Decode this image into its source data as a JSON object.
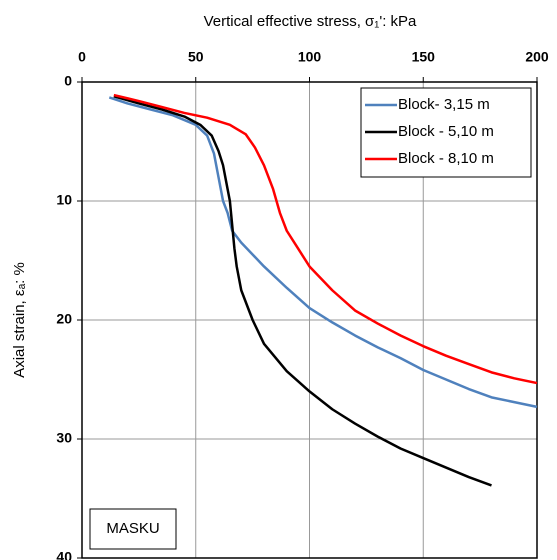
{
  "chart_data": {
    "type": "line",
    "title": "Vertical effective stress, σ₁':  kPa",
    "y_label": "Axial strain, εₐ: %",
    "annotation": "MASKU",
    "xlim": [
      0,
      200
    ],
    "xticks": [
      0,
      50,
      100,
      150,
      200
    ],
    "ylim": [
      0,
      40
    ],
    "yticks": [
      0,
      10,
      20,
      30,
      40
    ],
    "y_inverted": true,
    "x_axis_position": "top",
    "grid": true,
    "legend": "top-right",
    "series": [
      {
        "name": "Block- 3,15 m",
        "color": "#4f81bd",
        "x": [
          12,
          20,
          30,
          40,
          50,
          55,
          58,
          60,
          62,
          64,
          66,
          70,
          80,
          90,
          100,
          110,
          120,
          130,
          140,
          150,
          160,
          170,
          180,
          190,
          200
        ],
        "values": [
          1.3,
          1.8,
          2.3,
          2.8,
          3.6,
          4.5,
          6,
          8,
          10,
          11,
          12.5,
          13.5,
          15.5,
          17.3,
          19,
          20.2,
          21.3,
          22.3,
          23.2,
          24.2,
          25,
          25.8,
          26.5,
          26.9,
          27.3
        ]
      },
      {
        "name": "Block - 5,10 m",
        "color": "#000000",
        "x": [
          14,
          25,
          35,
          45,
          52,
          57,
          60,
          62,
          64,
          65,
          66,
          67,
          68,
          70,
          75,
          80,
          90,
          100,
          110,
          120,
          130,
          140,
          150,
          160,
          170,
          180
        ],
        "values": [
          1.2,
          1.8,
          2.3,
          2.9,
          3.6,
          4.5,
          5.8,
          7,
          9,
          10,
          12,
          14,
          15.5,
          17.5,
          20,
          22,
          24.3,
          26,
          27.5,
          28.7,
          29.8,
          30.8,
          31.6,
          32.4,
          33.2,
          33.9
        ]
      },
      {
        "name": "Block - 8,10 m",
        "color": "#ff0000",
        "x": [
          14,
          25,
          35,
          45,
          55,
          65,
          72,
          76,
          80,
          84,
          87,
          90,
          95,
          100,
          110,
          120,
          130,
          140,
          150,
          160,
          170,
          180,
          190,
          200
        ],
        "values": [
          1.1,
          1.6,
          2.1,
          2.6,
          3.0,
          3.6,
          4.4,
          5.5,
          7,
          9,
          11,
          12.5,
          14,
          15.5,
          17.5,
          19.2,
          20.3,
          21.3,
          22.2,
          23,
          23.7,
          24.4,
          24.9,
          25.3
        ]
      }
    ]
  }
}
